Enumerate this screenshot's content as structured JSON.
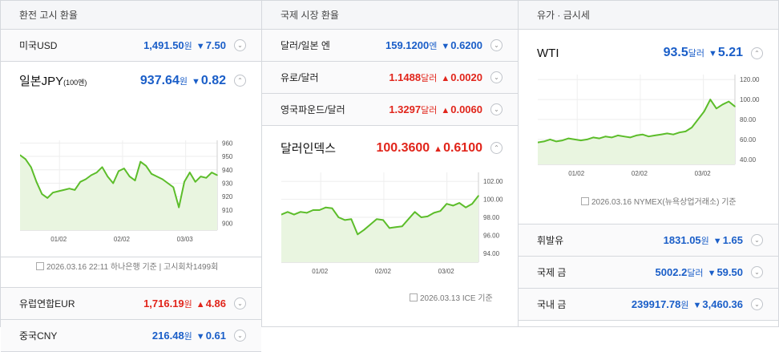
{
  "sections": {
    "fx": {
      "title": "환전 고시 환율"
    },
    "intl": {
      "title": "국제 시장 환율"
    },
    "oil": {
      "title": "유가 · 금시세"
    }
  },
  "fx": {
    "usd": {
      "name": "미국USD",
      "price": "1,491.50",
      "unit": "원",
      "arrow": "▼",
      "change": "7.50"
    },
    "jpy": {
      "name": "일본JPY",
      "name_suffix": "(100엔)",
      "price": "937.64",
      "unit": "원",
      "arrow": "▼",
      "change": "0.82"
    },
    "eur": {
      "name": "유럽연합EUR",
      "price": "1,716.19",
      "unit": "원",
      "arrow": "▲",
      "change": "4.86"
    },
    "cny": {
      "name": "중국CNY",
      "price": "216.48",
      "unit": "원",
      "arrow": "▼",
      "change": "0.61"
    },
    "source_date": "2026.03.16 22:11 하나은행 기준",
    "source_extra": "고시회차1499회"
  },
  "intl": {
    "jpy": {
      "name": "달러/일본 엔",
      "price": "159.1200",
      "unit": "엔",
      "arrow": "▼",
      "change": "0.6200"
    },
    "eur": {
      "name": "유로/달러",
      "price": "1.1488",
      "unit": "달러",
      "arrow": "▲",
      "change": "0.0020"
    },
    "gbp": {
      "name": "영국파운드/달러",
      "price": "1.3297",
      "unit": "달러",
      "arrow": "▲",
      "change": "0.0060"
    },
    "dxy": {
      "name": "달러인덱스",
      "price": "100.3600",
      "unit": "",
      "arrow": "▲",
      "change": "0.6100"
    },
    "source_date": "2026.03.13 ICE 기준"
  },
  "oil": {
    "wti": {
      "name": "WTI",
      "price": "93.5",
      "unit": "달러",
      "arrow": "▼",
      "change": "5.21"
    },
    "gasoline": {
      "name": "휘발유",
      "price": "1831.05",
      "unit": "원",
      "arrow": "▼",
      "change": "1.65"
    },
    "intl_gold": {
      "name": "국제 금",
      "price": "5002.2",
      "unit": "달러",
      "arrow": "▼",
      "change": "59.50"
    },
    "dom_gold": {
      "name": "국내 금",
      "price": "239917.78",
      "unit": "원",
      "arrow": "▼",
      "change": "3,460.36"
    },
    "source_date": "2026.03.16 NYMEX(뉴욕상업거래소) 기준"
  },
  "colors": {
    "up": "#e1251b",
    "down": "#1a5ec8",
    "line": "#5cbd2a",
    "fill": "#e9f5e0"
  },
  "chart_data": [
    {
      "type": "area",
      "ylim": [
        895,
        962
      ],
      "yticks": [
        "960",
        "950",
        "940",
        "930",
        "920",
        "910",
        "900"
      ],
      "xticks": [
        "01/02",
        "02/02",
        "03/03"
      ],
      "x": [
        0,
        2,
        4,
        6,
        8,
        10,
        12,
        14,
        16,
        18,
        20,
        22,
        24,
        26,
        28,
        30,
        32,
        34,
        36,
        38,
        40,
        42,
        44,
        46,
        48,
        50,
        52,
        54,
        56,
        58,
        60,
        62,
        64,
        66,
        68,
        70,
        72
      ],
      "series": [
        {
          "values": [
            951,
            948,
            942,
            931,
            922,
            919,
            923,
            924,
            925,
            926,
            925,
            931,
            933,
            936,
            938,
            942,
            935,
            930,
            939,
            941,
            935,
            932,
            946,
            943,
            937,
            935,
            933,
            930,
            927,
            912,
            931,
            938,
            931,
            935,
            934,
            938,
            936
          ]
        }
      ]
    },
    {
      "type": "area",
      "ylim": [
        93,
        103
      ],
      "yticks": [
        "102.00",
        "100.00",
        "98.00",
        "96.00",
        "94.00"
      ],
      "xticks": [
        "01/02",
        "02/02",
        "03/02"
      ],
      "x": [
        0,
        2,
        4,
        6,
        8,
        10,
        12,
        14,
        16,
        18,
        20,
        22,
        24,
        26,
        28,
        30,
        32,
        34,
        36,
        38,
        40,
        42,
        44,
        46,
        48,
        50,
        52,
        54,
        56,
        58,
        60,
        62
      ],
      "series": [
        {
          "values": [
            98.3,
            98.6,
            98.3,
            98.6,
            98.5,
            98.8,
            98.8,
            99.1,
            99.0,
            98.0,
            97.7,
            97.8,
            96.1,
            96.6,
            97.2,
            97.8,
            97.7,
            96.8,
            96.9,
            97.0,
            97.8,
            98.6,
            98.0,
            98.1,
            98.5,
            98.7,
            99.5,
            99.3,
            99.6,
            99.1,
            99.5,
            100.4
          ]
        }
      ]
    },
    {
      "type": "area",
      "ylim": [
        35,
        125
      ],
      "yticks": [
        "120.00",
        "100.00",
        "80.00",
        "60.00",
        "40.00"
      ],
      "xticks": [
        "01/02",
        "02/02",
        "03/02"
      ],
      "x": [
        0,
        2,
        4,
        6,
        8,
        10,
        12,
        14,
        16,
        18,
        20,
        22,
        24,
        26,
        28,
        30,
        32,
        34,
        36,
        38,
        40,
        42,
        44,
        46,
        48,
        50,
        52,
        54,
        56,
        58,
        60,
        62,
        64
      ],
      "series": [
        {
          "values": [
            57,
            58,
            60,
            58,
            59,
            61,
            60,
            59,
            60,
            62,
            61,
            63,
            62,
            64,
            63,
            62,
            64,
            65,
            63,
            64,
            65,
            66,
            65,
            67,
            68,
            72,
            80,
            88,
            100,
            91,
            95,
            98,
            93
          ]
        }
      ]
    }
  ]
}
